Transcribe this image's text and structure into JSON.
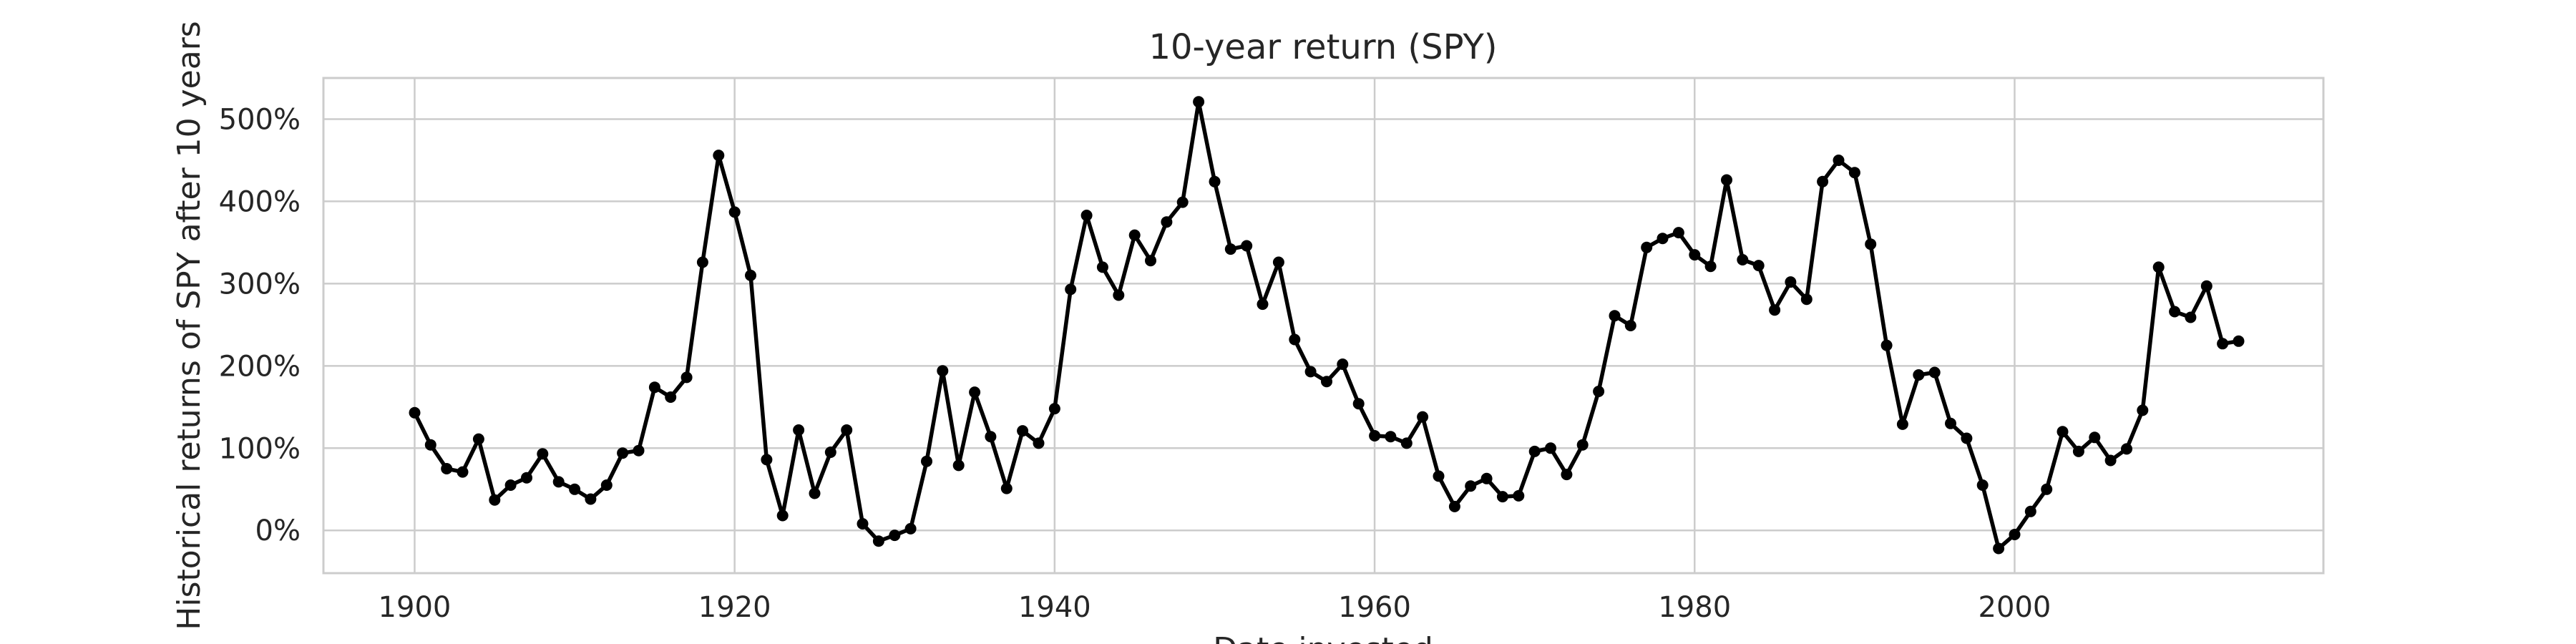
{
  "chart_data": {
    "type": "line",
    "title": "10-year return (SPY)",
    "xlabel": "Date invested",
    "ylabel": "Historical returns of SPY after 10 years",
    "xlim": [
      1894.3,
      2019.3
    ],
    "ylim": [
      -52,
      550
    ],
    "x_ticks": [
      1900,
      1920,
      1940,
      1960,
      1980,
      2000
    ],
    "x_tick_labels": [
      "1900",
      "1920",
      "1940",
      "1960",
      "1980",
      "2000"
    ],
    "y_ticks": [
      0,
      100,
      200,
      300,
      400,
      500
    ],
    "y_tick_labels": [
      "0%",
      "100%",
      "200%",
      "300%",
      "400%",
      "500%"
    ],
    "grid": true,
    "series": [
      {
        "x": [
          1900,
          1901,
          1902,
          1903,
          1904,
          1905,
          1906,
          1907,
          1908,
          1909,
          1910,
          1911,
          1912,
          1913,
          1914,
          1915,
          1916,
          1917,
          1918,
          1919,
          1920,
          1921,
          1922,
          1923,
          1924,
          1925,
          1926,
          1927,
          1928,
          1929,
          1930,
          1931,
          1932,
          1933,
          1934,
          1935,
          1936,
          1937,
          1938,
          1939,
          1940,
          1941,
          1942,
          1943,
          1944,
          1945,
          1946,
          1947,
          1948,
          1949,
          1950,
          1951,
          1952,
          1953,
          1954,
          1955,
          1956,
          1957,
          1958,
          1959,
          1960,
          1961,
          1962,
          1963,
          1964,
          1965,
          1966,
          1967,
          1968,
          1969,
          1970,
          1971,
          1972,
          1973,
          1974,
          1975,
          1976,
          1977,
          1978,
          1979,
          1980,
          1981,
          1982,
          1983,
          1984,
          1985,
          1986,
          1987,
          1988,
          1989,
          1990,
          1991,
          1992,
          1993,
          1994,
          1995,
          1996,
          1997,
          1998,
          1999,
          2000,
          2001,
          2002,
          2003,
          2004,
          2005,
          2006,
          2007,
          2008,
          2009,
          2010,
          2011,
          2012,
          2013,
          2014
        ],
        "values": [
          143,
          104,
          75,
          71,
          111,
          37,
          55,
          64,
          93,
          59,
          50,
          38,
          55,
          94,
          97,
          174,
          162,
          186,
          326,
          456,
          387,
          310,
          86,
          18,
          122,
          45,
          95,
          122,
          8,
          -13,
          -6,
          2,
          84,
          194,
          79,
          168,
          114,
          51,
          121,
          106,
          148,
          293,
          383,
          320,
          286,
          359,
          328,
          375,
          399,
          521,
          424,
          342,
          346,
          275,
          326,
          232,
          193,
          181,
          202,
          154,
          115,
          114,
          106,
          138,
          66,
          29,
          54,
          63,
          41,
          42,
          96,
          100,
          68,
          104,
          169,
          261,
          249,
          344,
          355,
          362,
          335,
          321,
          426,
          329,
          322,
          268,
          302,
          281,
          424,
          450,
          435,
          348,
          225,
          129,
          189,
          192,
          130,
          112,
          55,
          -22,
          -5,
          23,
          50,
          120,
          96,
          113,
          85,
          99,
          146,
          320,
          266,
          259,
          297,
          227,
          230
        ]
      }
    ]
  }
}
